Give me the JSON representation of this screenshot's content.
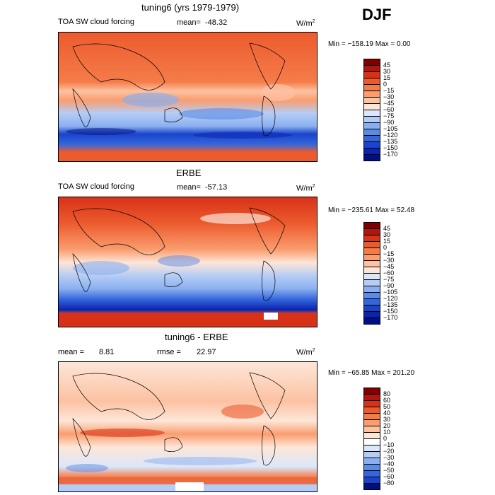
{
  "season": "DJF",
  "panels": [
    {
      "title": "tuning6 (yrs 1979-1979)",
      "field": "TOA SW cloud forcing",
      "mean_label": "mean=",
      "mean_value": "-48.32",
      "units": "W/m",
      "units_exp": "2",
      "minmax": "Min = −158.19 Max =    0.00",
      "colorbar": {
        "labels": [
          "45",
          "30",
          "15",
          "0",
          "−15",
          "−30",
          "−45",
          "−60",
          "−75",
          "−90",
          "−105",
          "−120",
          "−135",
          "−150",
          "−170"
        ],
        "colors": [
          "#800000",
          "#b0160f",
          "#d73218",
          "#ec5b2e",
          "#f57c49",
          "#fa9d6f",
          "#fcc2a2",
          "#fde6d8",
          "#dbe7fb",
          "#b5cdf5",
          "#8aaff0",
          "#5b8be6",
          "#3466dc",
          "#1a44cc",
          "#0b24ad",
          "#000f82"
        ]
      }
    },
    {
      "title": "ERBE",
      "field": "TOA SW cloud forcing",
      "mean_label": "mean=",
      "mean_value": "-57.13",
      "units": "W/m",
      "units_exp": "2",
      "minmax": "Min = −235.61 Max =  52.48",
      "colorbar": {
        "labels": [
          "45",
          "30",
          "15",
          "0",
          "−15",
          "−30",
          "−45",
          "−60",
          "−75",
          "−90",
          "−105",
          "−120",
          "−135",
          "−150",
          "−170"
        ],
        "colors": [
          "#800000",
          "#b0160f",
          "#d73218",
          "#ec5b2e",
          "#f57c49",
          "#fa9d6f",
          "#fcc2a2",
          "#fde6d8",
          "#dbe7fb",
          "#b5cdf5",
          "#8aaff0",
          "#5b8be6",
          "#3466dc",
          "#1a44cc",
          "#0b24ad",
          "#000f82"
        ]
      }
    },
    {
      "title": "tuning6 - ERBE",
      "mean_label": "mean =",
      "mean_value": "8.81",
      "rmse_label": "rmse =",
      "rmse_value": "22.97",
      "units": "W/m",
      "units_exp": "2",
      "minmax": "Min = −65.85 Max = 201.20",
      "colorbar": {
        "labels": [
          "80",
          "60",
          "50",
          "40",
          "30",
          "20",
          "10",
          "0",
          "−10",
          "−20",
          "−30",
          "−40",
          "−50",
          "−60",
          "−80"
        ],
        "colors": [
          "#800000",
          "#b0160f",
          "#d73218",
          "#ec5b2e",
          "#f57c49",
          "#fa9d6f",
          "#fcc2a2",
          "#fde6d8",
          "#ffffff",
          "#dbe7fb",
          "#b5cdf5",
          "#8aaff0",
          "#5b8be6",
          "#3466dc",
          "#1a44cc",
          "#000f82"
        ]
      }
    }
  ],
  "chart_data": [
    {
      "type": "heatmap",
      "title": "tuning6 (yrs 1979-1979)",
      "variable": "TOA SW cloud forcing",
      "units": "W/m2",
      "mean": -48.32,
      "min": -158.19,
      "max": 0.0,
      "contour_levels": [
        45,
        30,
        15,
        0,
        -15,
        -30,
        -45,
        -60,
        -75,
        -90,
        -105,
        -120,
        -135,
        -150,
        -170
      ]
    },
    {
      "type": "heatmap",
      "title": "ERBE",
      "variable": "TOA SW cloud forcing",
      "units": "W/m2",
      "mean": -57.13,
      "min": -235.61,
      "max": 52.48,
      "contour_levels": [
        45,
        30,
        15,
        0,
        -15,
        -30,
        -45,
        -60,
        -75,
        -90,
        -105,
        -120,
        -135,
        -150,
        -170
      ]
    },
    {
      "type": "heatmap",
      "title": "tuning6 - ERBE",
      "units": "W/m2",
      "mean": 8.81,
      "rmse": 22.97,
      "min": -65.85,
      "max": 201.2,
      "contour_levels": [
        80,
        60,
        50,
        40,
        30,
        20,
        10,
        0,
        -10,
        -20,
        -30,
        -40,
        -50,
        -60,
        -80
      ]
    }
  ]
}
